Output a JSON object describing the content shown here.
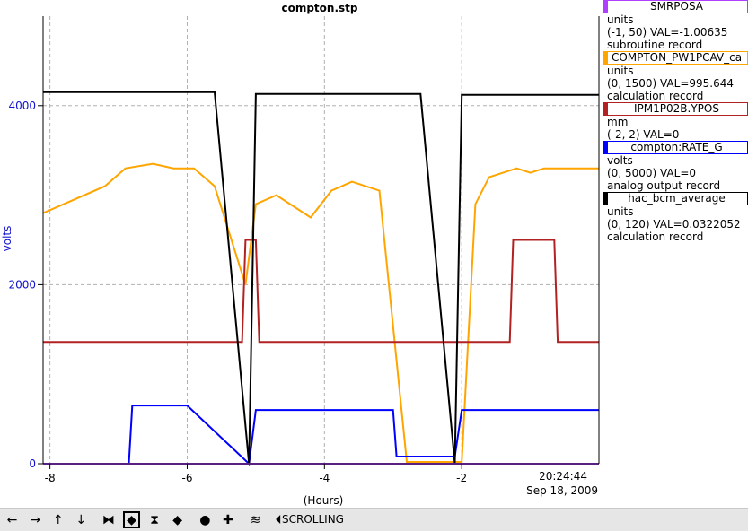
{
  "chart_data": {
    "type": "line",
    "title": "compton.stp",
    "xlabel": "(Hours)",
    "ylabel": "volts",
    "xlim": [
      -8.1,
      0
    ],
    "ylim": [
      0,
      5000
    ],
    "x_ticks": [
      -8,
      -6,
      -4,
      -2
    ],
    "y_ticks": [
      0,
      2000,
      4000
    ],
    "timestamp": "20:24:44",
    "date": "Sep 18, 2009",
    "grid": "dashed",
    "series": [
      {
        "name": "SMRPOSA",
        "color": "#b040ff",
        "units": "units",
        "range": "(-1, 50)",
        "val": "VAL=-1.00635",
        "record": "subroutine record",
        "x": [
          -8.1,
          0
        ],
        "y": [
          0,
          0
        ]
      },
      {
        "name": "COMPTON_PW1PCAV_ca",
        "color": "#ffa500",
        "units": "units",
        "range": "(0, 1500)",
        "val": "VAL=995.644",
        "record": "calculation record",
        "x": [
          -8.1,
          -7.2,
          -6.9,
          -6.5,
          -6.2,
          -5.9,
          -5.6,
          -5.15,
          -5.0,
          -4.7,
          -4.4,
          -4.2,
          -3.9,
          -3.6,
          -3.4,
          -3.2,
          -2.8,
          -2.0,
          -1.8,
          -1.6,
          -1.2,
          -1.0,
          -0.8,
          -0.6,
          -0.3,
          0
        ],
        "y": [
          2800,
          3100,
          3300,
          3350,
          3300,
          3300,
          3100,
          2000,
          2900,
          3000,
          2850,
          2750,
          3050,
          3150,
          3100,
          3050,
          20,
          20,
          2900,
          3200,
          3300,
          3250,
          3300,
          3300,
          3300,
          3300
        ]
      },
      {
        "name": "IPM1P02B.YPOS",
        "color": "#b22222",
        "units": "mm",
        "range": "(-2, 2)",
        "val": "VAL=0",
        "x": [
          -8.1,
          -5.2,
          -5.15,
          -5.0,
          -4.95,
          -1.3,
          -1.25,
          -0.65,
          -0.6,
          0
        ],
        "y": [
          1360,
          1360,
          2500,
          2500,
          1360,
          1360,
          2500,
          2500,
          1360,
          1360
        ]
      },
      {
        "name": "compton:RATE_G",
        "color": "#0000ff",
        "units": "volts",
        "range": "(0, 5000)",
        "val": "VAL=0",
        "record": "analog output record",
        "x": [
          -8.1,
          -6.85,
          -6.8,
          -6.0,
          -5.1,
          -5.0,
          -3.0,
          -2.95,
          -2.1,
          -2.0,
          0
        ],
        "y": [
          0,
          0,
          650,
          650,
          0,
          600,
          600,
          80,
          80,
          600,
          600
        ]
      },
      {
        "name": "hac_bcm_average",
        "color": "#000000",
        "units": "units",
        "range": "(0, 120)",
        "val": "VAL=0.0322052",
        "record": "calculation record",
        "x": [
          -8.1,
          -6.0,
          -5.6,
          -5.1,
          -5.0,
          -2.6,
          -2.1,
          -2.0,
          0
        ],
        "y": [
          4150,
          4150,
          4150,
          0,
          4130,
          4130,
          0,
          4120,
          4120
        ]
      }
    ]
  },
  "toolbar": {
    "buttons": [
      {
        "name": "scroll-left-icon",
        "glyph": "←"
      },
      {
        "name": "scroll-right-icon",
        "glyph": "→"
      },
      {
        "name": "scroll-up-icon",
        "glyph": "↑"
      },
      {
        "name": "scroll-down-icon",
        "glyph": "↓"
      },
      {
        "name": "zoom-in-x-icon",
        "glyph": "⧓"
      },
      {
        "name": "zoom-out-x-icon",
        "glyph": "◆"
      },
      {
        "name": "zoom-in-y-icon",
        "glyph": "⧗"
      },
      {
        "name": "zoom-out-y-icon",
        "glyph": "◆"
      },
      {
        "name": "record-icon",
        "glyph": "●"
      },
      {
        "name": "add-icon",
        "glyph": "✚"
      },
      {
        "name": "autoscale-icon",
        "glyph": "≋"
      },
      {
        "name": "back-icon",
        "glyph": "⏴"
      }
    ],
    "mode": "SCROLLING"
  }
}
